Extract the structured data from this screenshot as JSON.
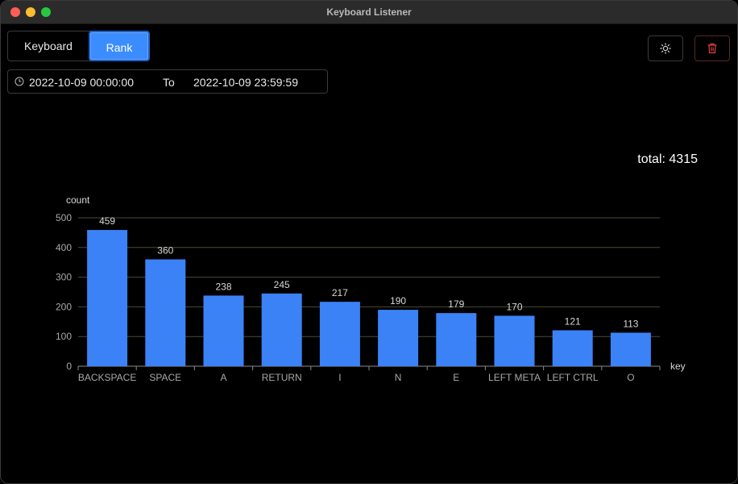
{
  "window": {
    "title": "Keyboard Listener"
  },
  "tabs": [
    {
      "label": "Keyboard",
      "active": false
    },
    {
      "label": "Rank",
      "active": true
    }
  ],
  "toolbar": {
    "settings_icon": "sun-icon",
    "delete_icon": "trash-icon"
  },
  "date_range": {
    "start": "2022-10-09 00:00:00",
    "separator": "To",
    "end": "2022-10-09 23:59:59"
  },
  "total_label": "total: 4315",
  "colors": {
    "bar": "#3b82f6",
    "accent": "#3b8cff",
    "delete": "#e04040"
  },
  "chart_data": {
    "type": "bar",
    "ylabel": "count",
    "xlabel": "key",
    "ylim": [
      0,
      500
    ],
    "yticks": [
      0,
      100,
      200,
      300,
      400,
      500
    ],
    "grid": true,
    "categories": [
      "BACKSPACE",
      "SPACE",
      "A",
      "RETURN",
      "I",
      "N",
      "E",
      "LEFT META",
      "LEFT CTRL",
      "O"
    ],
    "values": [
      459,
      360,
      238,
      245,
      217,
      190,
      179,
      170,
      121,
      113
    ]
  }
}
